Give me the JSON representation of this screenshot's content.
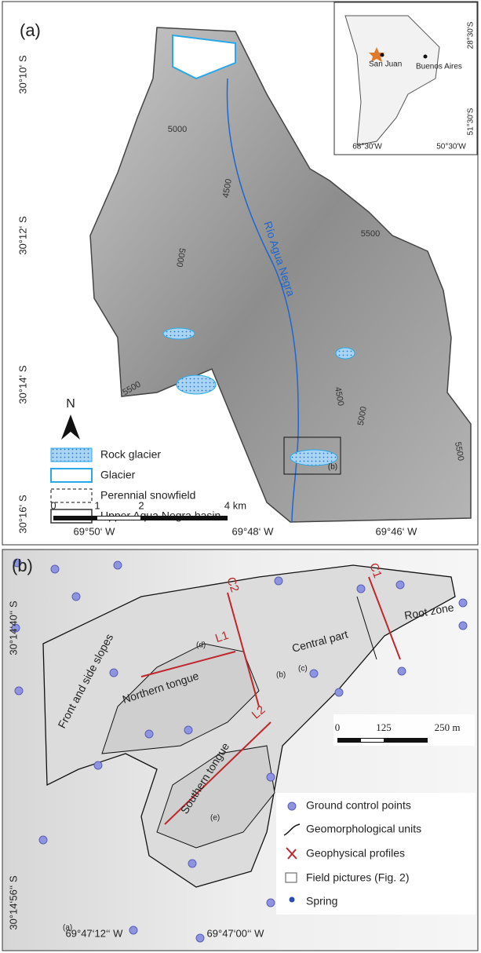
{
  "panel_a": {
    "label": "(a)",
    "latitude_labels": [
      "30°10‘ S",
      "30°12‘ S",
      "30°14‘ S",
      "30°16‘ S"
    ],
    "longitude_labels": [
      "69°50‘ W",
      "69°48‘ W",
      "69°46‘ W"
    ],
    "contour_labels": [
      "5000",
      "4500",
      "5000",
      "5500",
      "5500",
      "4500",
      "5000",
      "5500"
    ],
    "river_label": "Río Agua Negra",
    "detail_box_label": "(b)",
    "north": "N",
    "legend": [
      "Rock glacier",
      "Glacier",
      "Perennial snowfield",
      "Upper Aqua Negra basin"
    ],
    "scale_labels": [
      "0",
      "1",
      "2",
      "4 km"
    ],
    "inset": {
      "cities": [
        "San Juan",
        "Buenos Aires"
      ],
      "latitude_labels": [
        "28°30'S",
        "51°30'S"
      ],
      "longitude_labels": [
        "68°30'W",
        "50°30'W"
      ]
    }
  },
  "panel_b": {
    "label": "(b)",
    "latitude_labels": [
      "30°14‘40‘‘ S",
      "30°14‘56‘‘ S"
    ],
    "longitude_labels": [
      "69°47‘12‘‘ W",
      "69°47‘00‘‘ W"
    ],
    "units": [
      "Front and side slopes",
      "Northern tongue",
      "Southern tongue",
      "Central part",
      "Root zone"
    ],
    "profiles": [
      "C1",
      "C2",
      "L1",
      "L2"
    ],
    "field_pictures": [
      "(a)",
      "(b)",
      "(c)",
      "(d)",
      "(e)"
    ],
    "scale_labels": [
      "0",
      "125",
      "250 m"
    ],
    "legend": [
      "Ground control points",
      "Geomorphological units",
      "Geophysical profiles",
      "Field pictures (Fig. 2)",
      "Spring"
    ]
  }
}
